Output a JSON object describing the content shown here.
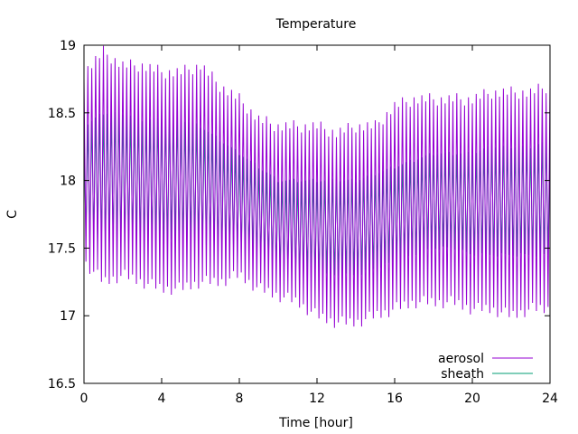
{
  "chart_data": {
    "type": "line",
    "title": "Temperature",
    "xlabel": "Time [hour]",
    "ylabel": "C",
    "xlim": [
      0,
      24
    ],
    "ylim": [
      16.5,
      19
    ],
    "xticks": [
      0,
      4,
      8,
      12,
      16,
      20,
      24
    ],
    "yticks": [
      16.5,
      17,
      17.5,
      18,
      18.5,
      19
    ],
    "grid": false,
    "legend_position": "bottom-right",
    "oscillation_period_hours": 0.2,
    "series": [
      {
        "name": "aerosol",
        "color": "#9400d3",
        "x": [
          0,
          1,
          2,
          3,
          4,
          5,
          6,
          7,
          8,
          9,
          10,
          11,
          12,
          13,
          14,
          15,
          16,
          17,
          18,
          19,
          20,
          21,
          22,
          23,
          24
        ],
        "max": [
          18.8,
          18.95,
          18.85,
          18.85,
          18.8,
          18.8,
          18.85,
          18.7,
          18.6,
          18.45,
          18.4,
          18.4,
          18.4,
          18.35,
          18.4,
          18.4,
          18.55,
          18.6,
          18.6,
          18.6,
          18.6,
          18.65,
          18.65,
          18.65,
          18.7
        ],
        "min": [
          17.4,
          17.25,
          17.3,
          17.25,
          17.2,
          17.2,
          17.25,
          17.25,
          17.3,
          17.2,
          17.15,
          17.1,
          17.0,
          16.95,
          16.95,
          17.0,
          17.05,
          17.1,
          17.1,
          17.1,
          17.05,
          17.05,
          17.0,
          17.05,
          17.05
        ]
      },
      {
        "name": "sheath",
        "color": "#009e73",
        "x": [
          0,
          1,
          2,
          3,
          4,
          5,
          6,
          7,
          8,
          9,
          10,
          11,
          12,
          13,
          14,
          15,
          16,
          17,
          18,
          19,
          20,
          21,
          22,
          23,
          24
        ],
        "max": [
          18.4,
          18.5,
          18.5,
          18.45,
          18.45,
          18.45,
          18.4,
          18.3,
          18.2,
          18.1,
          18.0,
          18.0,
          18.0,
          18.0,
          18.0,
          18.05,
          18.1,
          18.15,
          18.2,
          18.2,
          18.2,
          18.25,
          18.25,
          18.25,
          18.3
        ],
        "min": [
          17.6,
          17.55,
          17.55,
          17.55,
          17.55,
          17.55,
          17.55,
          17.5,
          17.5,
          17.45,
          17.35,
          17.3,
          17.3,
          17.3,
          17.3,
          17.35,
          17.4,
          17.45,
          17.5,
          17.5,
          17.45,
          17.45,
          17.45,
          17.45,
          17.45
        ]
      }
    ]
  }
}
